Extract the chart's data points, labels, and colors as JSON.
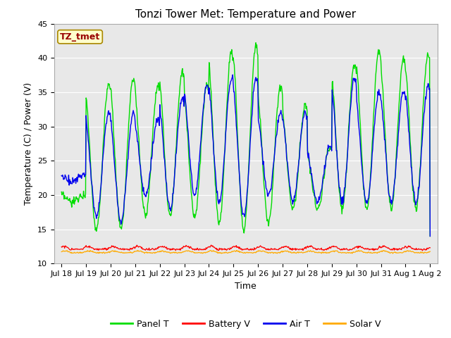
{
  "title": "Tonzi Tower Met: Temperature and Power",
  "xlabel": "Time",
  "ylabel": "Temperature (C) / Power (V)",
  "ylim": [
    10,
    45
  ],
  "yticks": [
    10,
    15,
    20,
    25,
    30,
    35,
    40,
    45
  ],
  "tick_labels": [
    "Jul 18",
    "Jul 19",
    "Jul 20",
    "Jul 21",
    "Jul 22",
    "Jul 23",
    "Jul 24",
    "Jul 25",
    "Jul 26",
    "Jul 27",
    "Jul 28",
    "Jul 29",
    "Jul 30",
    "Jul 31",
    "Aug 1",
    "Aug 2"
  ],
  "tick_positions": [
    0,
    1,
    2,
    3,
    4,
    5,
    6,
    7,
    8,
    9,
    10,
    11,
    12,
    13,
    14,
    15
  ],
  "legend_entries": [
    "Panel T",
    "Battery V",
    "Air T",
    "Solar V"
  ],
  "legend_colors": [
    "#00dd00",
    "#ff0000",
    "#0000ee",
    "#ffaa00"
  ],
  "annotation_text": "TZ_tmet",
  "annotation_color": "#990000",
  "annotation_bg": "#ffffcc",
  "annotation_border": "#aa8800",
  "panel_color": "#00dd00",
  "battery_color": "#ff0000",
  "air_color": "#0000ee",
  "solar_color": "#ffaa00",
  "background_color": "#e8e8e8",
  "grid_color": "#ffffff",
  "title_fontsize": 11,
  "axis_fontsize": 9,
  "tick_fontsize": 8,
  "legend_fontsize": 9
}
